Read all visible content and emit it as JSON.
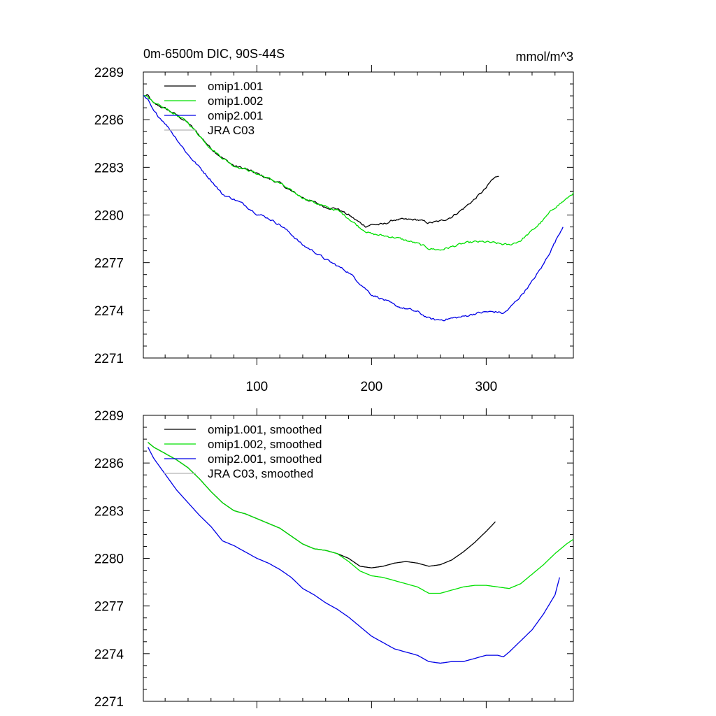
{
  "title": "0m-6500m DIC, 90S-44S",
  "units": "mmol/m^3",
  "colors": {
    "black": "#000000",
    "green": "#00e000",
    "blue": "#0000e6",
    "gray": "#b4b4b4"
  },
  "chart_data": [
    {
      "type": "line",
      "title": "0m-6500m DIC, 90S-44S",
      "ylabel": "mmol/m^3",
      "xlim": [
        1,
        376
      ],
      "ylim": [
        2271,
        2289
      ],
      "x_ticks": [
        100,
        200,
        300
      ],
      "y_ticks": [
        2271,
        2274,
        2277,
        2280,
        2283,
        2286,
        2289
      ],
      "legend_position": "top-left",
      "series": [
        {
          "name": "omip1.001",
          "color": "black",
          "key": [
            [
              1,
              2287.5
            ],
            [
              5,
              2287.5
            ],
            [
              10,
              2287.0
            ],
            [
              20,
              2286.7
            ],
            [
              30,
              2286.3
            ],
            [
              40,
              2285.8
            ],
            [
              50,
              2285.0
            ],
            [
              60,
              2284.2
            ],
            [
              70,
              2283.6
            ],
            [
              80,
              2283.1
            ],
            [
              90,
              2282.9
            ],
            [
              100,
              2282.6
            ],
            [
              110,
              2282.3
            ],
            [
              120,
              2282.0
            ],
            [
              130,
              2281.5
            ],
            [
              140,
              2281.1
            ],
            [
              150,
              2280.8
            ],
            [
              160,
              2280.5
            ],
            [
              170,
              2280.4
            ],
            [
              180,
              2280.0
            ],
            [
              190,
              2279.5
            ],
            [
              195,
              2279.3
            ],
            [
              200,
              2279.4
            ],
            [
              210,
              2279.4
            ],
            [
              220,
              2279.7
            ],
            [
              230,
              2279.7
            ],
            [
              240,
              2279.7
            ],
            [
              250,
              2279.5
            ],
            [
              260,
              2279.6
            ],
            [
              270,
              2279.9
            ],
            [
              280,
              2280.4
            ],
            [
              290,
              2281.0
            ],
            [
              300,
              2281.7
            ],
            [
              305,
              2282.2
            ],
            [
              311,
              2282.5
            ]
          ]
        },
        {
          "name": "omip1.002",
          "color": "green",
          "key": [
            [
              1,
              2287.5
            ],
            [
              5,
              2287.5
            ],
            [
              10,
              2287.0
            ],
            [
              20,
              2286.7
            ],
            [
              30,
              2286.3
            ],
            [
              40,
              2285.8
            ],
            [
              50,
              2285.0
            ],
            [
              60,
              2284.2
            ],
            [
              70,
              2283.6
            ],
            [
              80,
              2283.1
            ],
            [
              90,
              2282.9
            ],
            [
              100,
              2282.6
            ],
            [
              110,
              2282.3
            ],
            [
              120,
              2282.0
            ],
            [
              130,
              2281.5
            ],
            [
              140,
              2281.1
            ],
            [
              150,
              2280.8
            ],
            [
              160,
              2280.5
            ],
            [
              170,
              2280.3
            ],
            [
              180,
              2279.8
            ],
            [
              190,
              2279.2
            ],
            [
              200,
              2278.8
            ],
            [
              210,
              2278.7
            ],
            [
              220,
              2278.6
            ],
            [
              230,
              2278.4
            ],
            [
              240,
              2278.2
            ],
            [
              250,
              2277.9
            ],
            [
              260,
              2277.8
            ],
            [
              270,
              2278.0
            ],
            [
              280,
              2278.2
            ],
            [
              290,
              2278.3
            ],
            [
              300,
              2278.3
            ],
            [
              310,
              2278.2
            ],
            [
              320,
              2278.1
            ],
            [
              330,
              2278.4
            ],
            [
              340,
              2279.0
            ],
            [
              350,
              2279.7
            ],
            [
              360,
              2280.5
            ],
            [
              370,
              2281.0
            ],
            [
              376,
              2281.4
            ]
          ]
        },
        {
          "name": "omip2.001",
          "color": "blue",
          "key": [
            [
              1,
              2287.5
            ],
            [
              5,
              2287.2
            ],
            [
              10,
              2286.5
            ],
            [
              20,
              2285.8
            ],
            [
              30,
              2284.8
            ],
            [
              40,
              2283.8
            ],
            [
              50,
              2283.0
            ],
            [
              60,
              2282.2
            ],
            [
              70,
              2281.3
            ],
            [
              80,
              2281.0
            ],
            [
              90,
              2280.6
            ],
            [
              100,
              2280.1
            ],
            [
              110,
              2279.8
            ],
            [
              120,
              2279.4
            ],
            [
              130,
              2278.8
            ],
            [
              140,
              2278.1
            ],
            [
              150,
              2277.7
            ],
            [
              160,
              2277.2
            ],
            [
              170,
              2276.8
            ],
            [
              180,
              2276.4
            ],
            [
              190,
              2275.7
            ],
            [
              200,
              2275.0
            ],
            [
              210,
              2274.7
            ],
            [
              220,
              2274.3
            ],
            [
              230,
              2274.1
            ],
            [
              240,
              2273.9
            ],
            [
              250,
              2273.5
            ],
            [
              255,
              2273.4
            ],
            [
              260,
              2273.4
            ],
            [
              270,
              2273.5
            ],
            [
              280,
              2273.6
            ],
            [
              290,
              2273.8
            ],
            [
              300,
              2273.9
            ],
            [
              310,
              2273.9
            ],
            [
              315,
              2273.8
            ],
            [
              320,
              2274.1
            ],
            [
              330,
              2274.9
            ],
            [
              340,
              2275.8
            ],
            [
              350,
              2276.9
            ],
            [
              360,
              2278.3
            ],
            [
              367,
              2279.3
            ]
          ]
        },
        {
          "name": "JRA C03",
          "color": "gray",
          "key": [
            [
              20,
              2285.4
            ],
            [
              40,
              2285.4
            ]
          ]
        }
      ]
    },
    {
      "type": "line",
      "xlim": [
        1,
        376
      ],
      "ylim": [
        2271,
        2289
      ],
      "x_ticks": [
        100,
        200,
        300
      ],
      "y_ticks": [
        2271,
        2274,
        2277,
        2280,
        2283,
        2286,
        2289
      ],
      "legend_position": "top-left",
      "series": [
        {
          "name": "omip1.001, smoothed",
          "color": "black",
          "key": [
            [
              5,
              2287.3
            ],
            [
              10,
              2287.0
            ],
            [
              20,
              2286.6
            ],
            [
              30,
              2286.2
            ],
            [
              40,
              2285.7
            ],
            [
              50,
              2285.0
            ],
            [
              60,
              2284.2
            ],
            [
              70,
              2283.5
            ],
            [
              80,
              2283.0
            ],
            [
              90,
              2282.8
            ],
            [
              100,
              2282.5
            ],
            [
              110,
              2282.2
            ],
            [
              120,
              2281.9
            ],
            [
              130,
              2281.4
            ],
            [
              140,
              2280.9
            ],
            [
              150,
              2280.6
            ],
            [
              160,
              2280.5
            ],
            [
              170,
              2280.3
            ],
            [
              180,
              2280.0
            ],
            [
              190,
              2279.5
            ],
            [
              200,
              2279.4
            ],
            [
              210,
              2279.5
            ],
            [
              220,
              2279.7
            ],
            [
              230,
              2279.8
            ],
            [
              240,
              2279.7
            ],
            [
              250,
              2279.5
            ],
            [
              260,
              2279.6
            ],
            [
              270,
              2279.9
            ],
            [
              280,
              2280.4
            ],
            [
              290,
              2281.0
            ],
            [
              300,
              2281.7
            ],
            [
              308,
              2282.3
            ]
          ]
        },
        {
          "name": "omip1.002, smoothed",
          "color": "green",
          "key": [
            [
              5,
              2287.3
            ],
            [
              10,
              2287.0
            ],
            [
              20,
              2286.6
            ],
            [
              30,
              2286.2
            ],
            [
              40,
              2285.7
            ],
            [
              50,
              2285.0
            ],
            [
              60,
              2284.2
            ],
            [
              70,
              2283.5
            ],
            [
              80,
              2283.0
            ],
            [
              90,
              2282.8
            ],
            [
              100,
              2282.5
            ],
            [
              110,
              2282.2
            ],
            [
              120,
              2281.9
            ],
            [
              130,
              2281.4
            ],
            [
              140,
              2280.9
            ],
            [
              150,
              2280.6
            ],
            [
              160,
              2280.5
            ],
            [
              170,
              2280.3
            ],
            [
              180,
              2279.8
            ],
            [
              190,
              2279.2
            ],
            [
              200,
              2278.9
            ],
            [
              210,
              2278.8
            ],
            [
              220,
              2278.6
            ],
            [
              230,
              2278.4
            ],
            [
              240,
              2278.2
            ],
            [
              250,
              2277.8
            ],
            [
              260,
              2277.8
            ],
            [
              270,
              2278.0
            ],
            [
              280,
              2278.2
            ],
            [
              290,
              2278.3
            ],
            [
              300,
              2278.3
            ],
            [
              310,
              2278.2
            ],
            [
              320,
              2278.1
            ],
            [
              330,
              2278.4
            ],
            [
              340,
              2279.0
            ],
            [
              350,
              2279.6
            ],
            [
              360,
              2280.3
            ],
            [
              370,
              2280.9
            ],
            [
              376,
              2281.2
            ]
          ]
        },
        {
          "name": "omip2.001, smoothed",
          "color": "blue",
          "key": [
            [
              5,
              2287.0
            ],
            [
              10,
              2286.3
            ],
            [
              20,
              2285.3
            ],
            [
              30,
              2284.3
            ],
            [
              40,
              2283.5
            ],
            [
              50,
              2282.7
            ],
            [
              60,
              2282.0
            ],
            [
              70,
              2281.1
            ],
            [
              80,
              2280.8
            ],
            [
              90,
              2280.4
            ],
            [
              100,
              2280.0
            ],
            [
              110,
              2279.7
            ],
            [
              120,
              2279.3
            ],
            [
              130,
              2278.8
            ],
            [
              140,
              2278.1
            ],
            [
              150,
              2277.7
            ],
            [
              160,
              2277.2
            ],
            [
              170,
              2276.8
            ],
            [
              180,
              2276.3
            ],
            [
              190,
              2275.7
            ],
            [
              200,
              2275.1
            ],
            [
              210,
              2274.7
            ],
            [
              220,
              2274.3
            ],
            [
              230,
              2274.1
            ],
            [
              240,
              2273.9
            ],
            [
              250,
              2273.5
            ],
            [
              260,
              2273.4
            ],
            [
              270,
              2273.5
            ],
            [
              280,
              2273.5
            ],
            [
              290,
              2273.7
            ],
            [
              300,
              2273.9
            ],
            [
              310,
              2273.9
            ],
            [
              315,
              2273.8
            ],
            [
              320,
              2274.1
            ],
            [
              330,
              2274.8
            ],
            [
              340,
              2275.5
            ],
            [
              350,
              2276.5
            ],
            [
              360,
              2277.7
            ],
            [
              364,
              2278.8
            ]
          ]
        },
        {
          "name": "JRA C03, smoothed",
          "color": "gray",
          "key": [
            [
              20,
              2285.4
            ],
            [
              40,
              2285.4
            ]
          ]
        }
      ]
    }
  ]
}
